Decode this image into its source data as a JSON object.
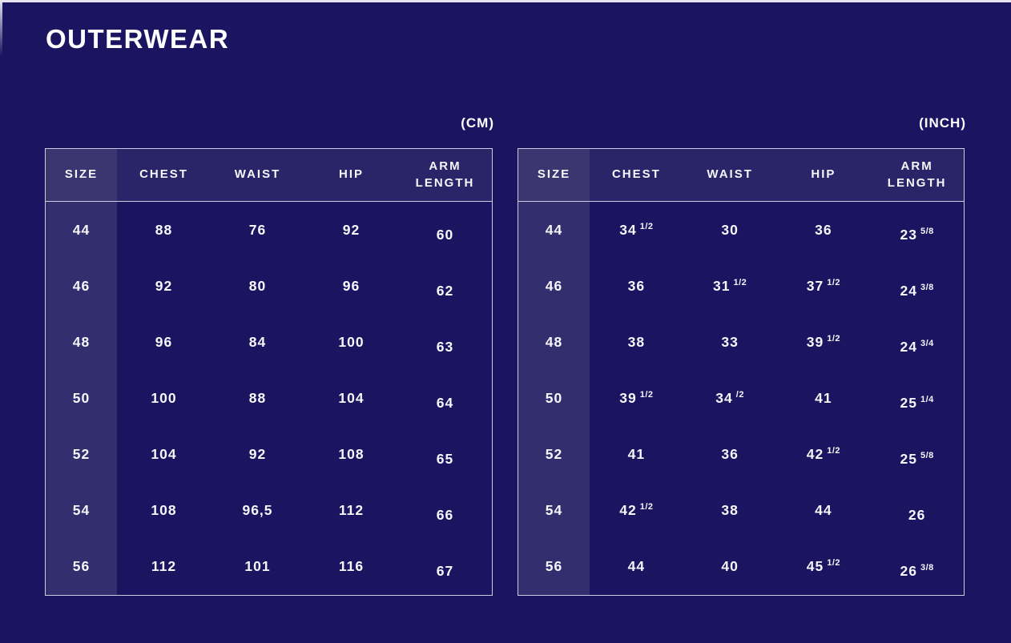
{
  "title": "OUTERWEAR",
  "colors": {
    "background": "#1b1460",
    "header_row": "#2a2468",
    "size_column": "#332e6d",
    "size_header": "#3b366f",
    "table_border": "#cdcae2",
    "text": "#ffffff",
    "edge_strip": "#e6e4f0"
  },
  "cm_table": {
    "unit_label": "(CM)",
    "headers": [
      "SIZE",
      "CHEST",
      "WAIST",
      "HIP",
      "ARM LENGTH"
    ],
    "rows": [
      [
        "44",
        "88",
        "76",
        "92",
        "60"
      ],
      [
        "46",
        "92",
        "80",
        "96",
        "62"
      ],
      [
        "48",
        "96",
        "84",
        "100",
        "63"
      ],
      [
        "50",
        "100",
        "88",
        "104",
        "64"
      ],
      [
        "52",
        "104",
        "92",
        "108",
        "65"
      ],
      [
        "54",
        "108",
        "96,5",
        "112",
        "66"
      ],
      [
        "56",
        "112",
        "101",
        "116",
        "67"
      ]
    ]
  },
  "inch_table": {
    "unit_label": "(INCH)",
    "headers": [
      "SIZE",
      "CHEST",
      "WAIST",
      "HIP",
      "ARM LENGTH"
    ],
    "rows": [
      [
        "44",
        "34 1/2",
        "30",
        "36",
        "23 5/8"
      ],
      [
        "46",
        "36",
        "31 1/2",
        "37 1/2",
        "24 3/8"
      ],
      [
        "48",
        "38",
        "33",
        "39 1/2",
        "24 3/4"
      ],
      [
        "50",
        "39 1/2",
        "34 /2",
        "41",
        "25 1/4"
      ],
      [
        "52",
        "41",
        "36",
        "42 1/2",
        "25 5/8"
      ],
      [
        "54",
        "42 1/2",
        "38",
        "44",
        "26"
      ],
      [
        "56",
        "44",
        "40",
        "45 1/2",
        "26 3/8"
      ]
    ]
  }
}
